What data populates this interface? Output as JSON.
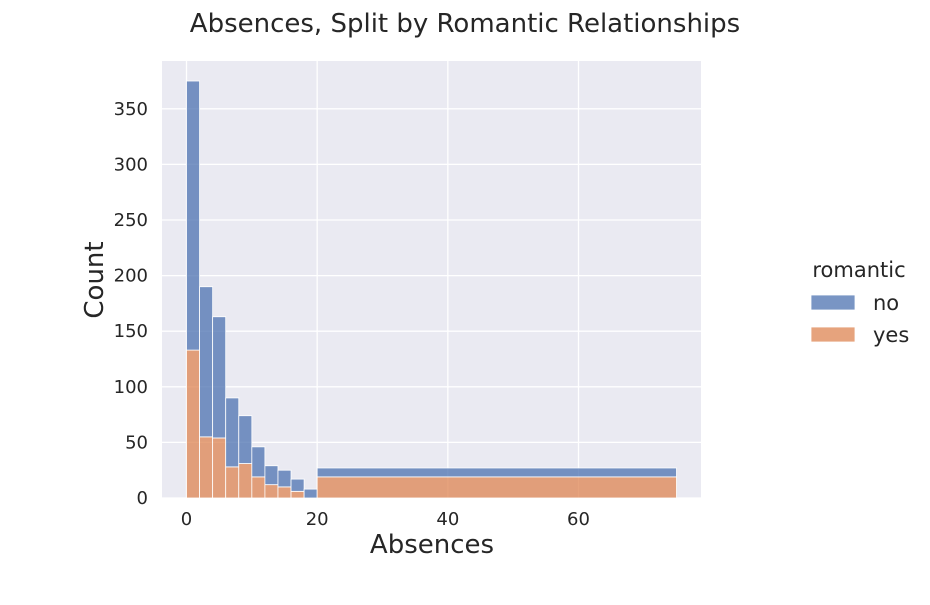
{
  "chart_data": {
    "type": "bar",
    "title": "Absences, Split by Romantic Relationships",
    "xlabel": "Absences",
    "ylabel": "Count",
    "xlim": [
      -3.75,
      78.75
    ],
    "ylim": [
      0,
      393
    ],
    "xticks": [
      0,
      20,
      40,
      60
    ],
    "yticks": [
      0,
      50,
      100,
      150,
      200,
      250,
      300,
      350
    ],
    "stacked": true,
    "grid": true,
    "legend": {
      "title": "romantic",
      "position": "right"
    },
    "bins": [
      {
        "x0": 0,
        "x1": 2
      },
      {
        "x0": 2,
        "x1": 4
      },
      {
        "x0": 4,
        "x1": 6
      },
      {
        "x0": 6,
        "x1": 8
      },
      {
        "x0": 8,
        "x1": 10
      },
      {
        "x0": 10,
        "x1": 12
      },
      {
        "x0": 12,
        "x1": 14
      },
      {
        "x0": 14,
        "x1": 16
      },
      {
        "x0": 16,
        "x1": 18
      },
      {
        "x0": 18,
        "x1": 20
      },
      {
        "x0": 20,
        "x1": 75
      }
    ],
    "series": [
      {
        "name": "yes",
        "color": "#dd8452",
        "values": [
          133,
          55,
          54,
          28,
          31,
          19,
          12,
          10,
          6,
          0,
          19
        ]
      },
      {
        "name": "no",
        "color": "#4c72b0",
        "values": [
          242,
          135,
          109,
          62,
          43,
          27,
          17,
          15,
          11,
          8,
          8
        ]
      }
    ]
  },
  "colors": {
    "plot_background": "#eaeaf2",
    "grid": "#ffffff",
    "text": "#262626"
  }
}
